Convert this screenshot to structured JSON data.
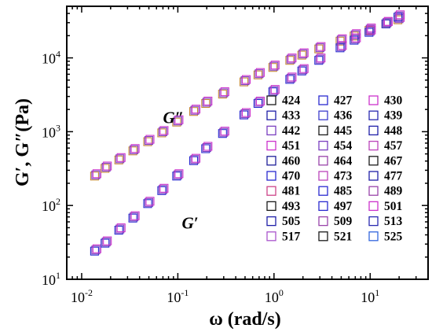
{
  "chart_data": {
    "type": "scatter",
    "xscale": "log",
    "yscale": "log",
    "xlim": [
      0.007,
      40
    ],
    "ylim": [
      10,
      50000
    ],
    "xlabel": "ω (rad/s)",
    "ylabel": "G′, G″(Pa)",
    "x_ticks": [
      {
        "value": 0.01,
        "base": "10",
        "exp": "-2"
      },
      {
        "value": 0.1,
        "base": "10",
        "exp": "-1"
      },
      {
        "value": 1,
        "base": "10",
        "exp": "0"
      },
      {
        "value": 10,
        "base": "10",
        "exp": "1"
      }
    ],
    "y_ticks": [
      {
        "value": 10,
        "base": "10",
        "exp": "1"
      },
      {
        "value": 100,
        "base": "10",
        "exp": "2"
      },
      {
        "value": 1000,
        "base": "10",
        "exp": "3"
      },
      {
        "value": 10000,
        "base": "10",
        "exp": "4"
      }
    ],
    "grid": false,
    "legend_position": "right",
    "legend_columns": 3,
    "legend": [
      {
        "label": "424",
        "color": "#1a1a1a"
      },
      {
        "label": "427",
        "color": "#2a2ad0"
      },
      {
        "label": "430",
        "color": "#cc33cc"
      },
      {
        "label": "433",
        "color": "#1f1fa8"
      },
      {
        "label": "436",
        "color": "#3d3dcc"
      },
      {
        "label": "439",
        "color": "#2a2ab0"
      },
      {
        "label": "442",
        "color": "#7a3fbf"
      },
      {
        "label": "445",
        "color": "#1a1a1a"
      },
      {
        "label": "448",
        "color": "#1f1fa8"
      },
      {
        "label": "451",
        "color": "#cc33cc"
      },
      {
        "label": "454",
        "color": "#7a3fbf"
      },
      {
        "label": "457",
        "color": "#bb44bb"
      },
      {
        "label": "460",
        "color": "#1f1f99"
      },
      {
        "label": "464",
        "color": "#9944aa"
      },
      {
        "label": "467",
        "color": "#1a1a1a"
      },
      {
        "label": "470",
        "color": "#2a2ad0"
      },
      {
        "label": "473",
        "color": "#bb44bb"
      },
      {
        "label": "477",
        "color": "#1f1fa8"
      },
      {
        "label": "481",
        "color": "#cc4488"
      },
      {
        "label": "485",
        "color": "#2a2ad0"
      },
      {
        "label": "489",
        "color": "#9944aa"
      },
      {
        "label": "493",
        "color": "#1a1a1a"
      },
      {
        "label": "497",
        "color": "#2a2ad0"
      },
      {
        "label": "501",
        "color": "#cc33cc"
      },
      {
        "label": "505",
        "color": "#1f1fa8"
      },
      {
        "label": "509",
        "color": "#9944aa"
      },
      {
        "label": "513",
        "color": "#2a2ab0"
      },
      {
        "label": "517",
        "color": "#aa55cc"
      },
      {
        "label": "521",
        "color": "#1a1a1a"
      },
      {
        "label": "525",
        "color": "#3366dd"
      }
    ],
    "annotations": [
      {
        "text": "G″",
        "x": 0.07,
        "y": 1550
      },
      {
        "text": "G′",
        "x": 0.11,
        "y": 58
      }
    ],
    "series": [
      {
        "name": "G″",
        "color": "#c78a3a",
        "x": [
          0.014,
          0.018,
          0.025,
          0.035,
          0.05,
          0.07,
          0.1,
          0.15,
          0.2,
          0.3,
          0.5,
          0.7,
          1.0,
          1.5,
          2.0,
          3.0,
          5.0,
          7.0,
          10.0,
          15.0,
          20.0
        ],
        "y": [
          260,
          330,
          430,
          570,
          760,
          1000,
          1400,
          1950,
          2500,
          3350,
          4900,
          6100,
          7700,
          9600,
          11300,
          13700,
          17500,
          20500,
          24500,
          30000,
          34000
        ]
      },
      {
        "name": "G′",
        "color": "#4a3aa8",
        "x": [
          0.014,
          0.018,
          0.025,
          0.035,
          0.05,
          0.07,
          0.1,
          0.15,
          0.2,
          0.3,
          0.5,
          0.7,
          1.0,
          1.5,
          2.0,
          3.0,
          5.0,
          7.0,
          10.0,
          15.0,
          20.0
        ],
        "y": [
          25,
          32,
          48,
          70,
          110,
          165,
          260,
          420,
          610,
          980,
          1750,
          2500,
          3600,
          5300,
          6900,
          9600,
          14200,
          18000,
          23000,
          30000,
          37000
        ]
      }
    ]
  }
}
